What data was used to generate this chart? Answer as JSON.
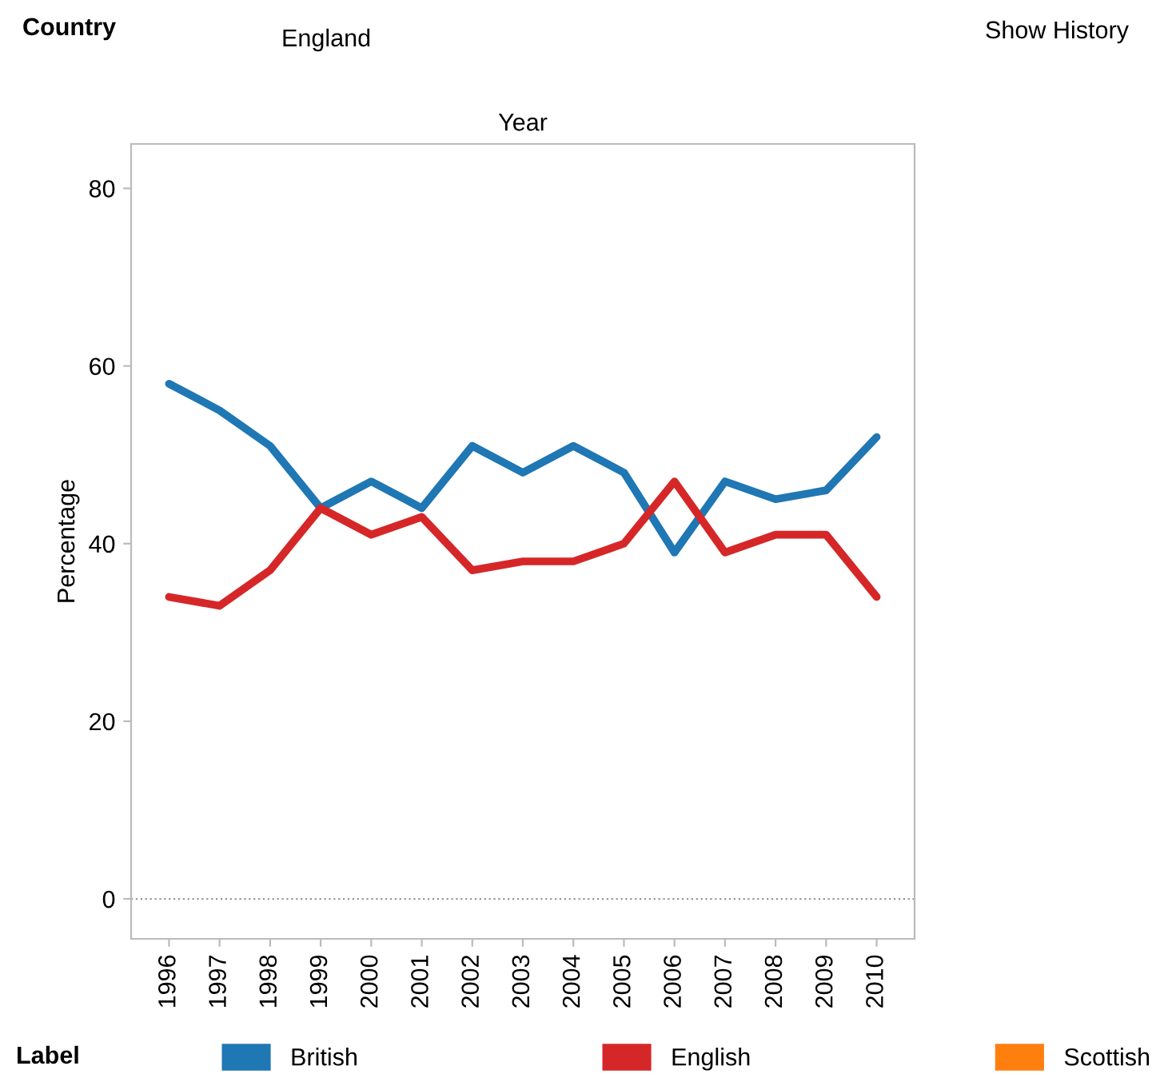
{
  "chart_data": {
    "type": "line",
    "xlabel": "Year",
    "ylabel": "Percentage",
    "legend_title": "Label",
    "legend": "bottom",
    "annotations": [
      "Country",
      "England",
      "Show History"
    ],
    "categories": [
      "1996",
      "1997",
      "1998",
      "1999",
      "2000",
      "2001",
      "2002",
      "2003",
      "2004",
      "2005",
      "2006",
      "2007",
      "2008",
      "2009",
      "2010"
    ],
    "series": [
      {
        "name": "British",
        "color": "#1f77b4",
        "values": [
          58,
          55,
          51,
          44,
          47,
          44,
          51,
          48,
          51,
          48,
          39,
          47,
          45,
          46,
          52
        ]
      },
      {
        "name": "English",
        "color": "#d62728",
        "values": [
          34,
          33,
          37,
          44,
          41,
          43,
          37,
          38,
          38,
          40,
          47,
          39,
          41,
          41,
          34
        ]
      },
      {
        "name": "Scottish",
        "color": "#ff7f0e",
        "values": [
          null,
          null,
          null,
          null,
          null,
          null,
          null,
          null,
          null,
          null,
          null,
          null,
          null,
          null,
          null
        ]
      }
    ],
    "ylim": [
      -4.5,
      85
    ],
    "yticks": [
      0,
      20,
      40,
      60,
      80
    ],
    "grid": false,
    "marker": "none",
    "line_style": "solid",
    "ref_lines": [
      {
        "axis": "y",
        "value": 0,
        "color": "#999999",
        "line_style": "dotted"
      }
    ]
  }
}
